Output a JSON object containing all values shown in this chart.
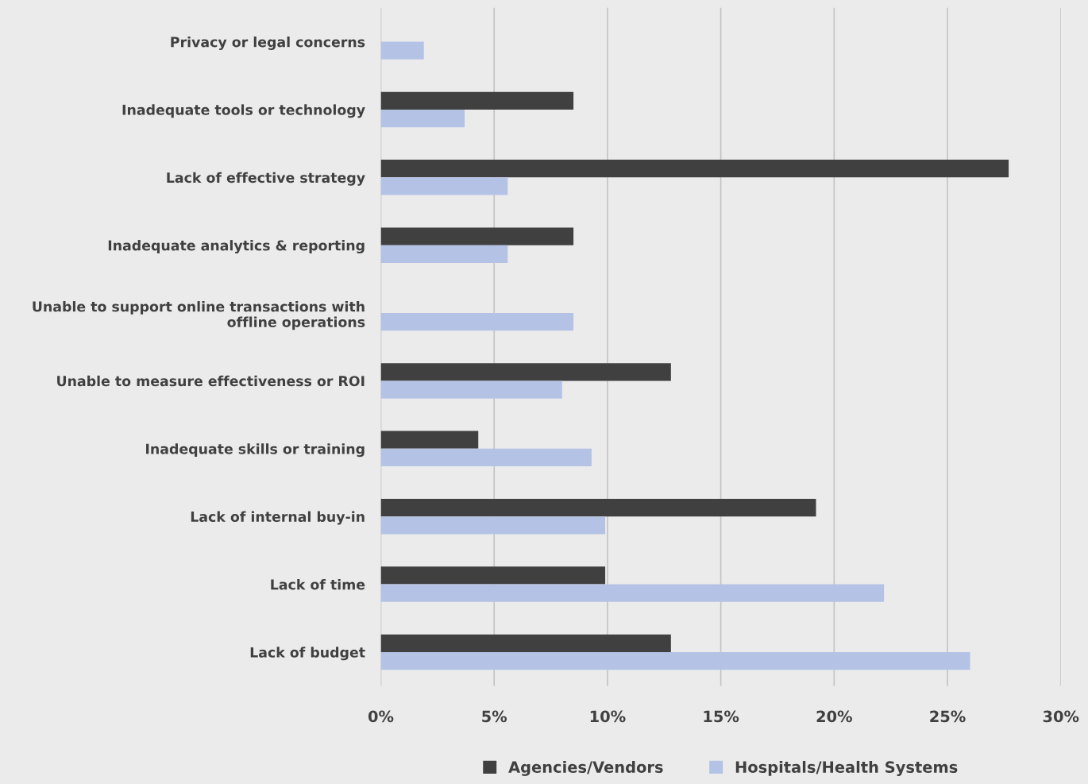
{
  "chart_data": {
    "type": "bar",
    "orientation": "horizontal",
    "categories": [
      "Privacy or legal concerns",
      "Inadequate tools or technology",
      "Lack of effective strategy",
      "Inadequate analytics & reporting",
      "Unable to support online transactions with\noffline operations",
      "Unable to measure effectiveness or ROI",
      "Inadequate skills or training",
      "Lack of internal buy-in",
      "Lack of time",
      "Lack of budget"
    ],
    "series": [
      {
        "name": "Agencies/Vendors",
        "color": "#404041",
        "values": [
          0,
          8.5,
          27.7,
          8.5,
          0,
          12.8,
          4.3,
          19.2,
          9.9,
          12.8
        ]
      },
      {
        "name": "Hospitals/Health Systems",
        "color": "#b4c3e5",
        "values": [
          1.9,
          3.7,
          5.6,
          5.6,
          8.5,
          8.0,
          9.3,
          9.9,
          22.2,
          26.0
        ]
      }
    ],
    "xlim": [
      0,
      30
    ],
    "xticks": [
      {
        "value": 0,
        "label": "0%"
      },
      {
        "value": 5,
        "label": "5%"
      },
      {
        "value": 10,
        "label": "10%"
      },
      {
        "value": 15,
        "label": "15%"
      },
      {
        "value": 20,
        "label": "20%"
      },
      {
        "value": 25,
        "label": "25%"
      },
      {
        "value": 30,
        "label": "30%"
      }
    ],
    "grid": "x",
    "legend": "bottom"
  }
}
